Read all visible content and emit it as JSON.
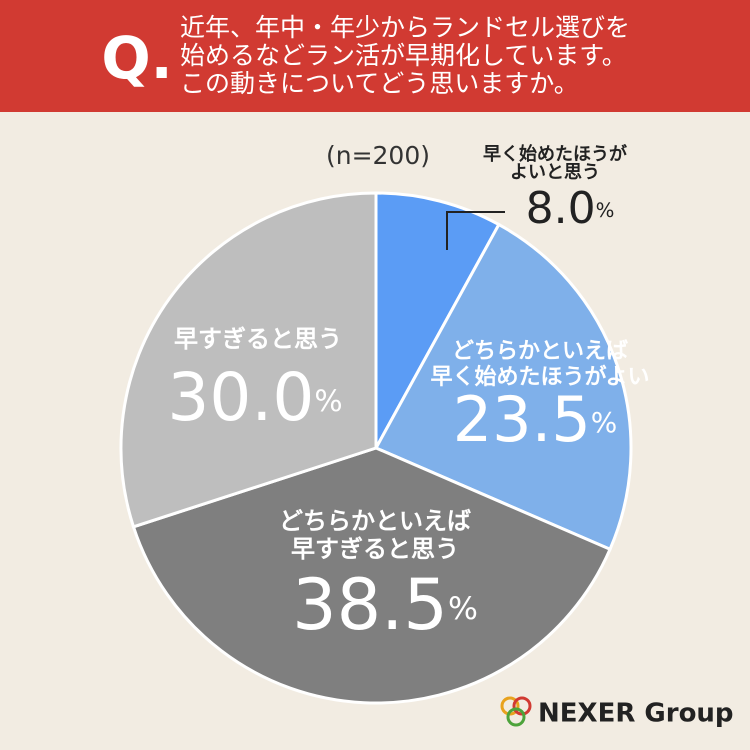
{
  "chart_data": {
    "type": "pie",
    "title_mark": "Q.",
    "title": [
      "近年、年中・年少からランドセル選びを",
      "始めるなどラン活が早期化しています。",
      "この動きについてどう思いますか。"
    ],
    "subtitle": "(n=200)",
    "categories": [
      [
        "早く始めたほうが",
        "よいと思う"
      ],
      [
        "どちらかといえば",
        "早く始めたほうがよい"
      ],
      [
        "どちらかといえば",
        "早すぎると思う"
      ],
      [
        "早すぎると思う"
      ]
    ],
    "values": [
      8.0,
      23.5,
      38.5,
      30.0
    ],
    "value_labels": [
      "8.0%",
      "23.5%",
      "38.5%",
      "30.0%"
    ],
    "colors": [
      "#5b9cf5",
      "#7fb0ea",
      "#7f7f7f",
      "#bebebe"
    ],
    "logo": "NEXER Group"
  }
}
